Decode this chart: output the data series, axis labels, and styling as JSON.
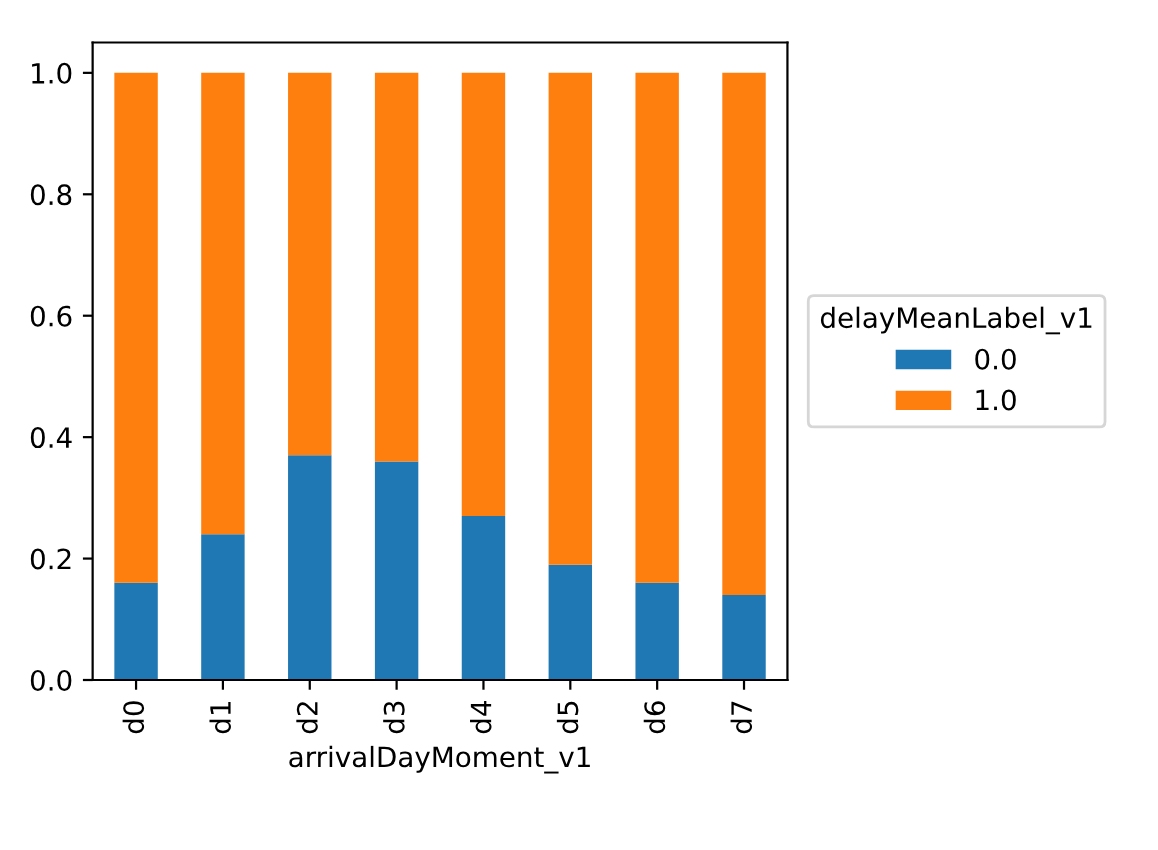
{
  "chart_data": {
    "type": "bar",
    "stacked": true,
    "xlabel": "arrivalDayMoment_v1",
    "legend_title": "delayMeanLabel_v1",
    "legend": "right",
    "categories": [
      "d0",
      "d1",
      "d2",
      "d3",
      "d4",
      "d5",
      "d6",
      "d7"
    ],
    "series": [
      {
        "name": "0.0",
        "color": "#1f77b4",
        "values": [
          0.16,
          0.24,
          0.37,
          0.36,
          0.27,
          0.19,
          0.16,
          0.14
        ]
      },
      {
        "name": "1.0",
        "color": "#ff7f0e",
        "values": [
          0.84,
          0.76,
          0.63,
          0.64,
          0.73,
          0.81,
          0.84,
          0.86
        ]
      }
    ],
    "ylim": [
      0,
      1.05
    ],
    "yticks": [
      {
        "value": 0,
        "label": "0.0"
      },
      {
        "value": 0.2,
        "label": "0.2"
      },
      {
        "value": 0.4,
        "label": "0.4"
      },
      {
        "value": 0.6,
        "label": "0.6"
      },
      {
        "value": 0.8,
        "label": "0.8"
      },
      {
        "value": 1.0,
        "label": "1.0"
      }
    ],
    "grid": false
  }
}
